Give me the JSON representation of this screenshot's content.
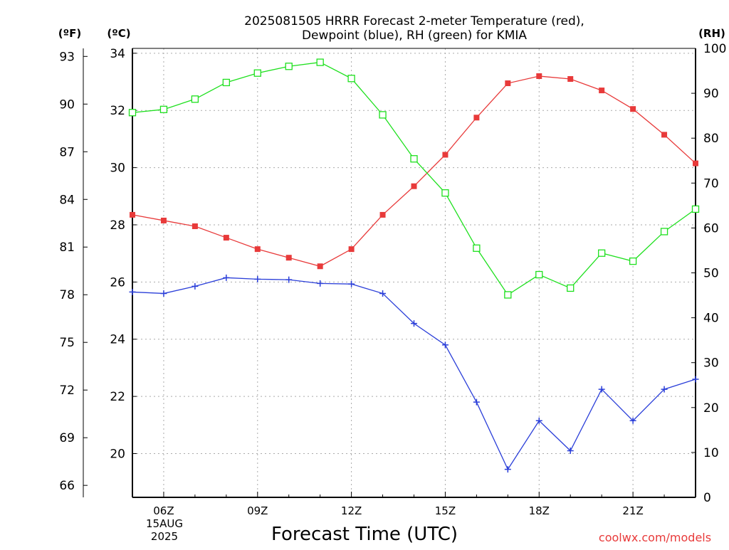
{
  "title_line1": "2025081505 HRRR Forecast 2-meter Temperature (red),",
  "title_line2": "Dewpoint (blue), RH (green) for KMIA",
  "unit_f": "(ºF)",
  "unit_c": "(ºC)",
  "unit_rh": "(RH)",
  "xlabel": "Forecast Time (UTC)",
  "credit": "coolwx.com/models",
  "date_label": {
    "line1": "15AUG",
    "line2": "2025"
  },
  "colors": {
    "temperature": "#e83a3a",
    "dewpoint": "#2b3fd9",
    "rh": "#1ee01e",
    "credit": "#e83a3a",
    "grid": "#aaaaaa"
  },
  "chart_data": {
    "type": "line",
    "x_unit": "hour UTC, 15 AUG 2025",
    "x": [
      5,
      6,
      7,
      8,
      9,
      10,
      11,
      12,
      13,
      14,
      15,
      16,
      17,
      18,
      19,
      20,
      21,
      22,
      23
    ],
    "xlim": [
      5,
      23
    ],
    "x_ticks": [
      6,
      9,
      12,
      15,
      18,
      21
    ],
    "x_tick_labels": [
      "06Z",
      "09Z",
      "12Z",
      "15Z",
      "18Z",
      "21Z"
    ],
    "series": [
      {
        "name": "Temperature",
        "axis": "C",
        "marker": "filled-square",
        "color": "#e83a3a",
        "values": [
          28.35,
          28.15,
          27.95,
          27.55,
          27.15,
          26.85,
          26.55,
          27.15,
          28.35,
          29.35,
          30.45,
          31.75,
          32.95,
          33.2,
          33.1,
          32.7,
          32.05,
          31.15,
          30.15
        ]
      },
      {
        "name": "Dewpoint",
        "axis": "C",
        "marker": "plus",
        "color": "#2b3fd9",
        "values": [
          25.65,
          25.6,
          25.85,
          26.15,
          26.1,
          26.08,
          25.95,
          25.93,
          25.6,
          24.55,
          23.8,
          21.8,
          19.45,
          21.15,
          20.1,
          22.25,
          21.15,
          22.25,
          22.6
        ]
      },
      {
        "name": "RH",
        "axis": "RH",
        "marker": "open-square",
        "color": "#1ee01e",
        "values": [
          85.7,
          86.4,
          88.7,
          92.4,
          94.5,
          96.0,
          96.9,
          93.3,
          85.2,
          75.4,
          67.8,
          55.5,
          45.1,
          49.6,
          46.6,
          54.4,
          52.6,
          59.2,
          64.2
        ]
      }
    ],
    "y_left_C": {
      "ylim": [
        18.47,
        34.17
      ],
      "ticks": [
        20,
        22,
        24,
        26,
        28,
        30,
        32,
        34
      ]
    },
    "y_left_F": {
      "ticks": [
        66,
        69,
        72,
        75,
        78,
        81,
        84,
        87,
        90,
        93
      ]
    },
    "y_right_RH": {
      "ylim": [
        0,
        100
      ],
      "ticks": [
        0,
        10,
        20,
        30,
        40,
        50,
        60,
        70,
        80,
        90,
        100
      ]
    },
    "grid": true
  }
}
